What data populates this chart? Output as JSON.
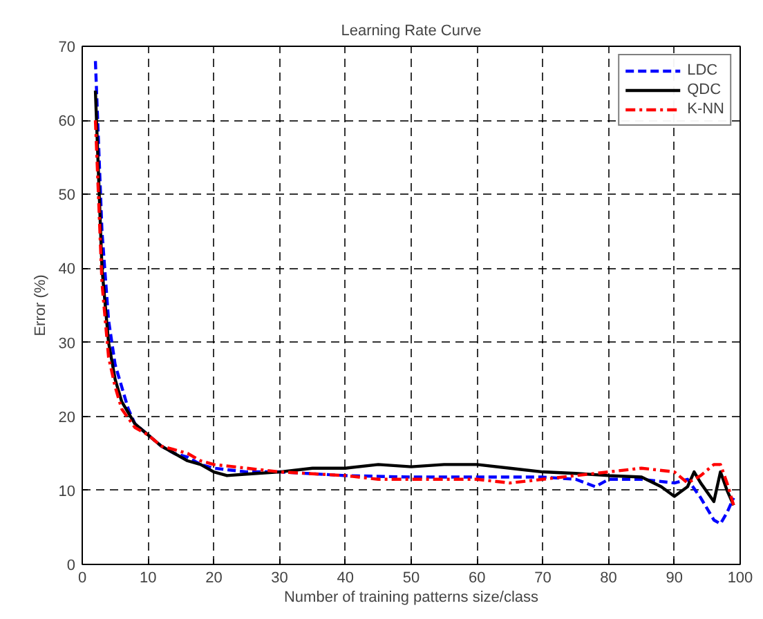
{
  "chart_data": {
    "type": "line",
    "title": "Learning Rate Curve",
    "xlabel": "Number of training patterns size/class",
    "ylabel": "Error (%)",
    "xlim": [
      0,
      100
    ],
    "ylim": [
      0,
      70
    ],
    "xticks": [
      0,
      10,
      20,
      30,
      40,
      50,
      60,
      70,
      80,
      90,
      100
    ],
    "yticks": [
      0,
      10,
      20,
      30,
      40,
      50,
      60,
      70
    ],
    "grid": true,
    "legend": "top right",
    "marker": "none",
    "series": [
      {
        "name": "LDC",
        "color": "#0000ff",
        "line_style": "dashed",
        "x": [
          2,
          3,
          4,
          5,
          6,
          7,
          8,
          10,
          12,
          14,
          16,
          18,
          20,
          25,
          30,
          40,
          50,
          60,
          70,
          75,
          78,
          80,
          85,
          90,
          92,
          94,
          96,
          97,
          98,
          99
        ],
        "values": [
          68,
          45,
          33,
          27,
          24,
          21,
          19,
          17.5,
          16,
          15,
          14.5,
          13.5,
          13,
          12.5,
          12.5,
          12,
          11.8,
          11.8,
          11.8,
          11.5,
          10.5,
          11.5,
          11.5,
          11,
          11.5,
          9,
          6,
          5.5,
          7,
          9
        ]
      },
      {
        "name": "QDC",
        "color": "#000000",
        "line_style": "solid",
        "x": [
          2,
          3,
          4,
          5,
          6,
          8,
          10,
          12,
          14,
          16,
          18,
          20,
          22,
          25,
          30,
          35,
          40,
          45,
          50,
          55,
          60,
          65,
          70,
          75,
          80,
          85,
          88,
          90,
          92,
          93,
          94,
          96,
          97,
          98,
          99
        ],
        "values": [
          64,
          40,
          30,
          25,
          22,
          19,
          17.5,
          16,
          15,
          14,
          13.5,
          12.5,
          12,
          12.2,
          12.5,
          13,
          13,
          13.5,
          13.2,
          13.5,
          13.5,
          13,
          12.5,
          12.3,
          12,
          11.8,
          10.5,
          9.2,
          10.5,
          12.5,
          11,
          8.5,
          12.5,
          10,
          8
        ]
      },
      {
        "name": "K-NN",
        "color": "#ff0000",
        "line_style": "dashdot",
        "x": [
          2,
          3,
          4,
          5,
          6,
          8,
          10,
          12,
          14,
          16,
          18,
          20,
          25,
          30,
          40,
          45,
          50,
          55,
          60,
          65,
          70,
          75,
          80,
          85,
          90,
          92,
          94,
          96,
          97,
          98,
          99
        ],
        "values": [
          60,
          38,
          28,
          24,
          21,
          18.5,
          17.5,
          16,
          15.5,
          15,
          14,
          13.5,
          13,
          12.5,
          12,
          11.5,
          11.5,
          11.5,
          11.5,
          11,
          11.5,
          12,
          12.5,
          13,
          12.5,
          11,
          12,
          13.5,
          13.5,
          11,
          8
        ]
      }
    ]
  }
}
